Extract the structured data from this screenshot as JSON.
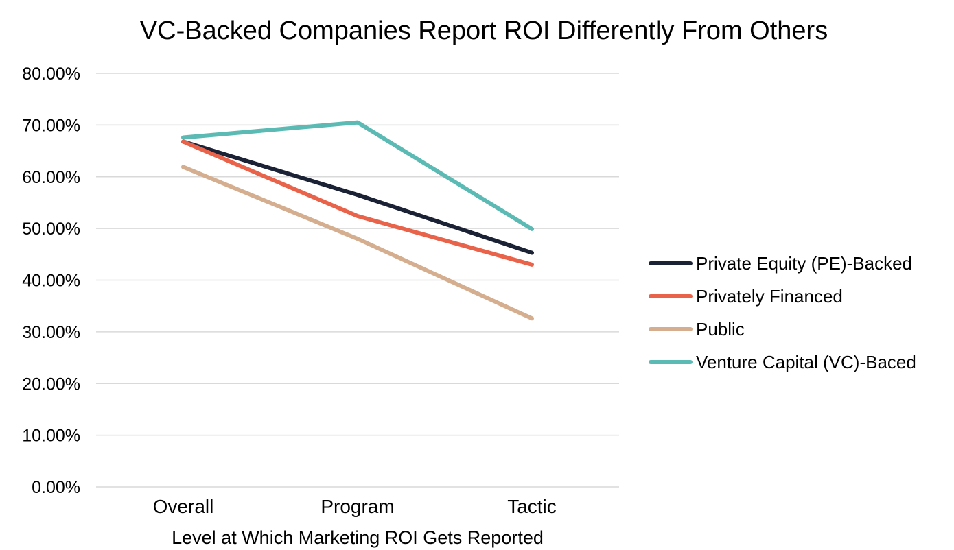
{
  "chart_data": {
    "type": "line",
    "title": "VC-Backed Companies Report ROI Differently From Others",
    "xlabel": "Level at Which Marketing ROI Gets Reported",
    "ylabel": "",
    "categories": [
      "Overall",
      "Program",
      "Tactic"
    ],
    "ylim": [
      0,
      80
    ],
    "yticks": [
      0,
      10,
      20,
      30,
      40,
      50,
      60,
      70,
      80
    ],
    "ytick_labels": [
      "0.00%",
      "10.00%",
      "20.00%",
      "30.00%",
      "40.00%",
      "50.00%",
      "60.00%",
      "70.00%",
      "80.00%"
    ],
    "grid": true,
    "legend_position": "right",
    "series": [
      {
        "name": "Private Equity (PE)-Backed",
        "color": "#1b2235",
        "values": [
          66.8,
          56.5,
          45.3
        ]
      },
      {
        "name": "Privately Financed",
        "color": "#e9624a",
        "values": [
          66.8,
          52.4,
          43.0
        ]
      },
      {
        "name": "Public",
        "color": "#d4ae8e",
        "values": [
          61.9,
          48.0,
          32.6
        ]
      },
      {
        "name": "Venture Capital (VC)-Baced",
        "color": "#5cbab4",
        "values": [
          67.6,
          70.5,
          49.9
        ]
      }
    ]
  }
}
